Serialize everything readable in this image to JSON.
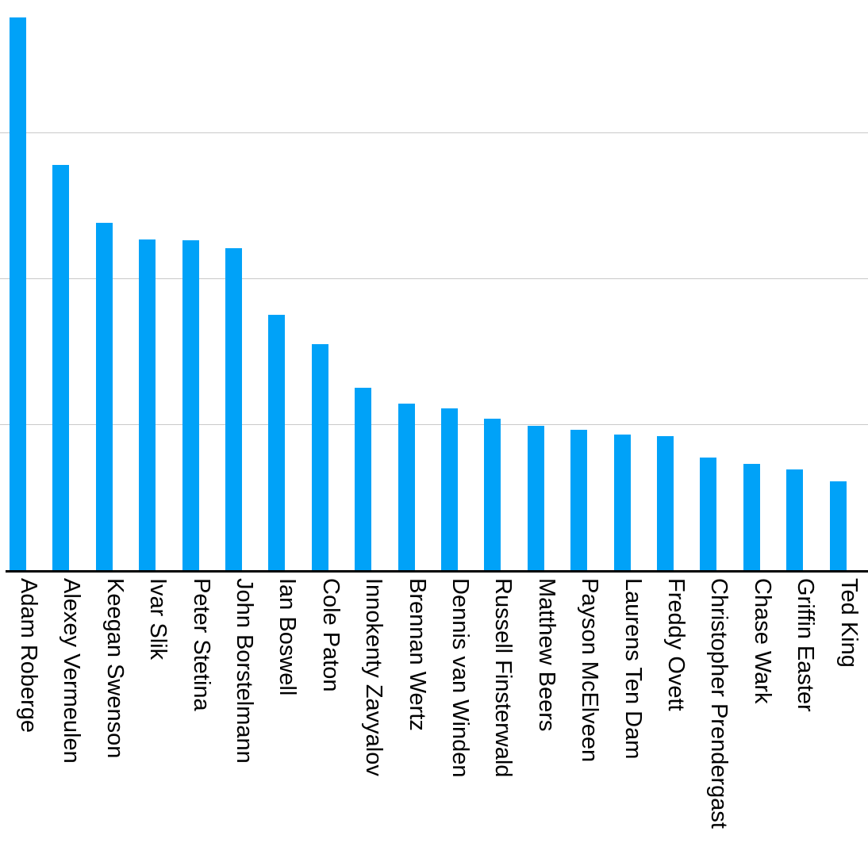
{
  "chart_data": {
    "type": "bar",
    "title": "",
    "xlabel": "",
    "ylabel": "",
    "categories": [
      "Adam Roberge",
      "Alexey Vermeulen",
      "Keegan Swenson",
      "Ivar Slik",
      "Peter Stetina",
      "John Borstelmann",
      "Ian Boswell",
      "Cole Paton",
      "Innokenty Zavyalov",
      "Brennan Wertz",
      "Dennis van Winden",
      "Russell Finsterwald",
      "Matthew Beers",
      "Payson McElveen",
      "Laurens Ten Dam",
      "Freddy Ovett",
      "Christopher Prendergast",
      "Chase Wark",
      "Griffin Easter",
      "Ted King"
    ],
    "values": [
      3.79,
      2.78,
      2.38,
      2.27,
      2.26,
      2.21,
      1.75,
      1.55,
      1.25,
      1.14,
      1.11,
      1.04,
      0.99,
      0.96,
      0.93,
      0.92,
      0.77,
      0.73,
      0.69,
      0.61
    ],
    "value_note": "y-axis has no tick labels; values measured in gridline intervals",
    "ylim": [
      0,
      3.91
    ],
    "gridline_values": [
      1,
      2,
      3
    ],
    "grid": "horizontal",
    "legend": "none",
    "x_tick_label_rotation_deg": 90,
    "colors": {
      "bar": "#00A2F8",
      "gridline": "#C9C9C9",
      "axis": "#000000",
      "background": "#FFFFFF",
      "label_text": "#000000"
    }
  }
}
